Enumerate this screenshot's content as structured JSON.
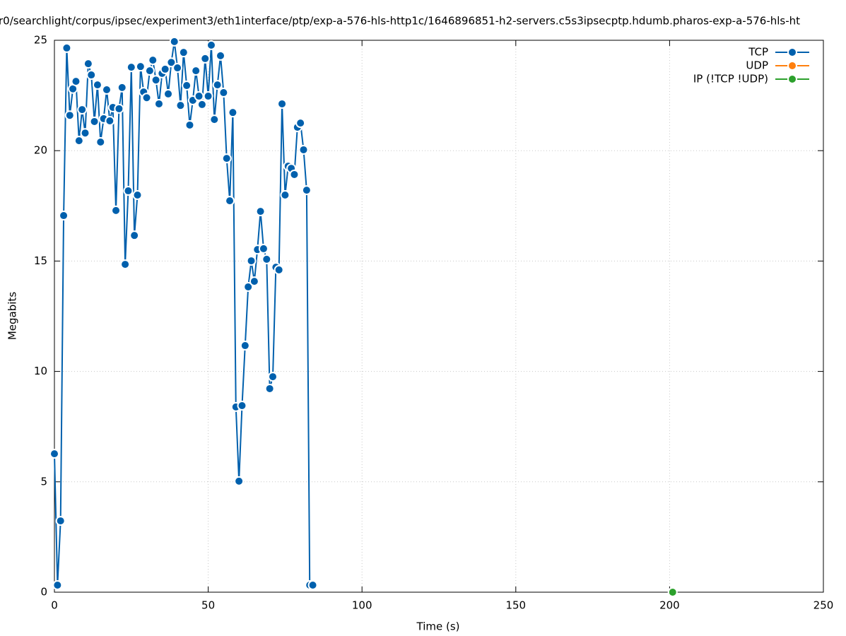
{
  "chart_data": {
    "type": "line",
    "title": "r0/searchlight/corpus/ipsec/experiment3/eth1interface/ptp/exp-a-576-hls-http1c/1646896851-h2-servers.c5s3ipsecptp.hdumb.pharos-exp-a-576-hls-ht",
    "x_label": "Time (s)",
    "y_label": "Megabits",
    "xlim": [
      0,
      250
    ],
    "xticks": [
      0,
      50,
      100,
      150,
      200,
      250
    ],
    "ylim": [
      0,
      25
    ],
    "yticks": [
      0,
      5,
      10,
      15,
      20,
      25
    ],
    "grid": true,
    "legend": "top-right",
    "series": [
      {
        "name": "TCP",
        "color": "#0060ad",
        "x": [
          0,
          1,
          2,
          3,
          4,
          5,
          6,
          7,
          8,
          9,
          10,
          11,
          12,
          13,
          14,
          15,
          16,
          17,
          18,
          19,
          20,
          21,
          22,
          23,
          24,
          25,
          26,
          27,
          28,
          29,
          30,
          31,
          32,
          33,
          34,
          35,
          36,
          37,
          38,
          39,
          40,
          41,
          42,
          43,
          44,
          45,
          46,
          47,
          48,
          49,
          50,
          51,
          52,
          53,
          54,
          55,
          56,
          57,
          58,
          59,
          60,
          61,
          62,
          63,
          64,
          65,
          66,
          67,
          68,
          69,
          70,
          71,
          72,
          73,
          74,
          75,
          76,
          77,
          78,
          79,
          80,
          81,
          82,
          83,
          84
        ],
        "values": [
          6.27,
          0.32,
          3.23,
          17.06,
          24.65,
          21.6,
          22.8,
          23.14,
          20.45,
          21.86,
          20.8,
          23.94,
          23.43,
          21.32,
          22.98,
          20.39,
          21.45,
          22.76,
          21.35,
          21.96,
          17.29,
          21.9,
          22.86,
          14.85,
          18.18,
          23.78,
          16.16,
          17.99,
          23.81,
          22.66,
          22.4,
          23.62,
          24.1,
          23.2,
          22.12,
          23.5,
          23.69,
          22.57,
          24.0,
          24.94,
          23.75,
          22.05,
          24.45,
          22.95,
          21.16,
          22.28,
          23.62,
          22.47,
          22.09,
          24.17,
          22.47,
          24.78,
          21.41,
          22.98,
          24.3,
          22.63,
          19.65,
          17.73,
          21.73,
          8.39,
          5.03,
          8.45,
          11.17,
          13.83,
          15.01,
          14.08,
          15.52,
          17.25,
          15.56,
          15.08,
          9.22,
          9.76,
          14.72,
          14.6,
          22.12,
          17.99,
          19.3,
          19.2,
          18.92,
          21.06,
          21.25,
          20.04,
          18.21,
          0.32,
          0.32
        ]
      },
      {
        "name": "UDP",
        "color": "#ff7f0e",
        "x": [],
        "values": []
      },
      {
        "name": "IP (!TCP  !UDP)",
        "color": "#2ca02c",
        "x": [
          201
        ],
        "values": [
          0
        ]
      }
    ]
  }
}
